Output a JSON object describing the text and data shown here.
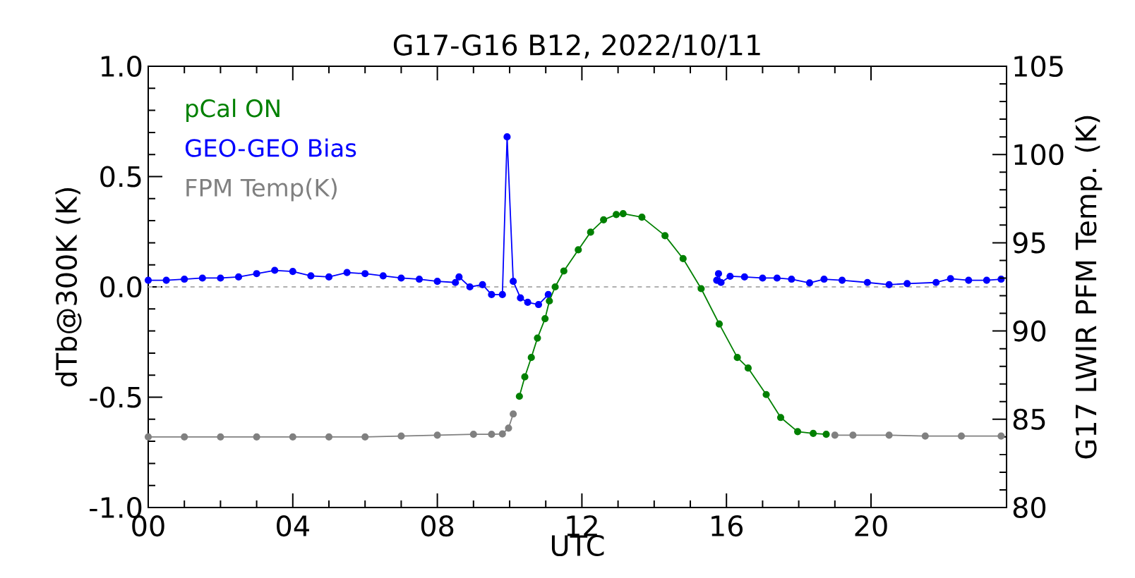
{
  "chart_data": {
    "type": "line",
    "title": "G17-G16 B12, 2022/10/11",
    "xlabel": "UTC",
    "ylabel": "dTb@300K (K)",
    "y2label": "G17 LWIR PFM Temp. (K)",
    "xlim": [
      0,
      23.75
    ],
    "xticks": [
      {
        "value": 0,
        "label": "00"
      },
      {
        "value": 4,
        "label": "04"
      },
      {
        "value": 8,
        "label": "08"
      },
      {
        "value": 12,
        "label": "12"
      },
      {
        "value": 16,
        "label": "16"
      },
      {
        "value": 20,
        "label": "20"
      }
    ],
    "ylim": [
      -1,
      1
    ],
    "yticks": [
      {
        "value": -1,
        "label": "-1.0"
      },
      {
        "value": -0.5,
        "label": "-0.5"
      },
      {
        "value": 0,
        "label": "0.0"
      },
      {
        "value": 0.5,
        "label": "0.5"
      },
      {
        "value": 1,
        "label": "1.0"
      }
    ],
    "y2lim": [
      80,
      105
    ],
    "y2ticks": [
      80,
      85,
      90,
      95,
      100,
      105
    ],
    "grid": false,
    "legend": "top left",
    "marker": "circle",
    "line_style": "solid",
    "ref_lines": [
      {
        "axis": "y",
        "value": 0,
        "color": "#b0b0b0",
        "line_style": "dashed"
      }
    ],
    "series": [
      {
        "name": "pCal ON",
        "color": "#008000",
        "axis": "y2",
        "x": [
          10.27,
          10.42,
          10.6,
          10.77,
          10.98,
          11.1,
          11.26,
          11.5,
          11.9,
          12.24,
          12.6,
          12.95,
          13.14,
          13.66,
          14.3,
          14.8,
          15.3,
          15.8,
          16.3,
          16.6,
          17.1,
          17.5,
          17.97,
          18.4,
          18.76
        ],
        "values": [
          86.3,
          87.4,
          88.5,
          89.6,
          90.7,
          91.7,
          92.5,
          93.4,
          94.6,
          95.6,
          96.3,
          96.6,
          96.65,
          96.45,
          95.4,
          94.1,
          92.4,
          90.4,
          88.5,
          87.9,
          86.4,
          85.1,
          84.3,
          84.2,
          84.15
        ]
      },
      {
        "name": "GEO-GEO Bias",
        "color": "#0000ff",
        "x": [
          0,
          0.5,
          1,
          1.5,
          2,
          2.5,
          3,
          3.5,
          4,
          4.5,
          5,
          5.5,
          6,
          6.5,
          7,
          7.5,
          8,
          8.5,
          8.6,
          8.9,
          9.25,
          9.5,
          9.8,
          9.93,
          10.1,
          10.3,
          10.5,
          10.8,
          11.07,
          13.4,
          15.73,
          15.78,
          15.85,
          16.1,
          16.5,
          17,
          17.4,
          17.8,
          18.3,
          18.7,
          19.2,
          19.9,
          20.5,
          21,
          21.8,
          22.2,
          22.7,
          23.2,
          23.6
        ],
        "values": [
          0.03,
          0.03,
          0.035,
          0.04,
          0.04,
          0.045,
          0.06,
          0.075,
          0.07,
          0.05,
          0.045,
          0.065,
          0.06,
          0.05,
          0.04,
          0.035,
          0.025,
          0.02,
          0.045,
          0.0,
          0.01,
          -0.035,
          -0.035,
          0.68,
          0.025,
          -0.05,
          -0.07,
          -0.08,
          -0.035,
          null,
          0.03,
          0.06,
          0.02,
          0.048,
          0.045,
          0.04,
          0.04,
          0.035,
          0.018,
          0.035,
          0.03,
          0.02,
          0.01,
          0.015,
          0.02,
          0.037,
          0.03,
          0.03,
          0.035
        ]
      },
      {
        "name": "FPM Temp(K)",
        "color": "#808080",
        "axis": "y2",
        "x": [
          0,
          1,
          2,
          3,
          4,
          5,
          6,
          7,
          8,
          9,
          9.5,
          9.8,
          9.97,
          10.1,
          14,
          19.0,
          19.5,
          20.5,
          21.5,
          22.5,
          23.6
        ],
        "values": [
          84.0,
          84.0,
          84.0,
          84.0,
          84.0,
          84.0,
          84.0,
          84.05,
          84.1,
          84.15,
          84.15,
          84.17,
          84.5,
          85.3,
          null,
          84.1,
          84.1,
          84.1,
          84.05,
          84.05,
          84.05
        ]
      }
    ]
  }
}
